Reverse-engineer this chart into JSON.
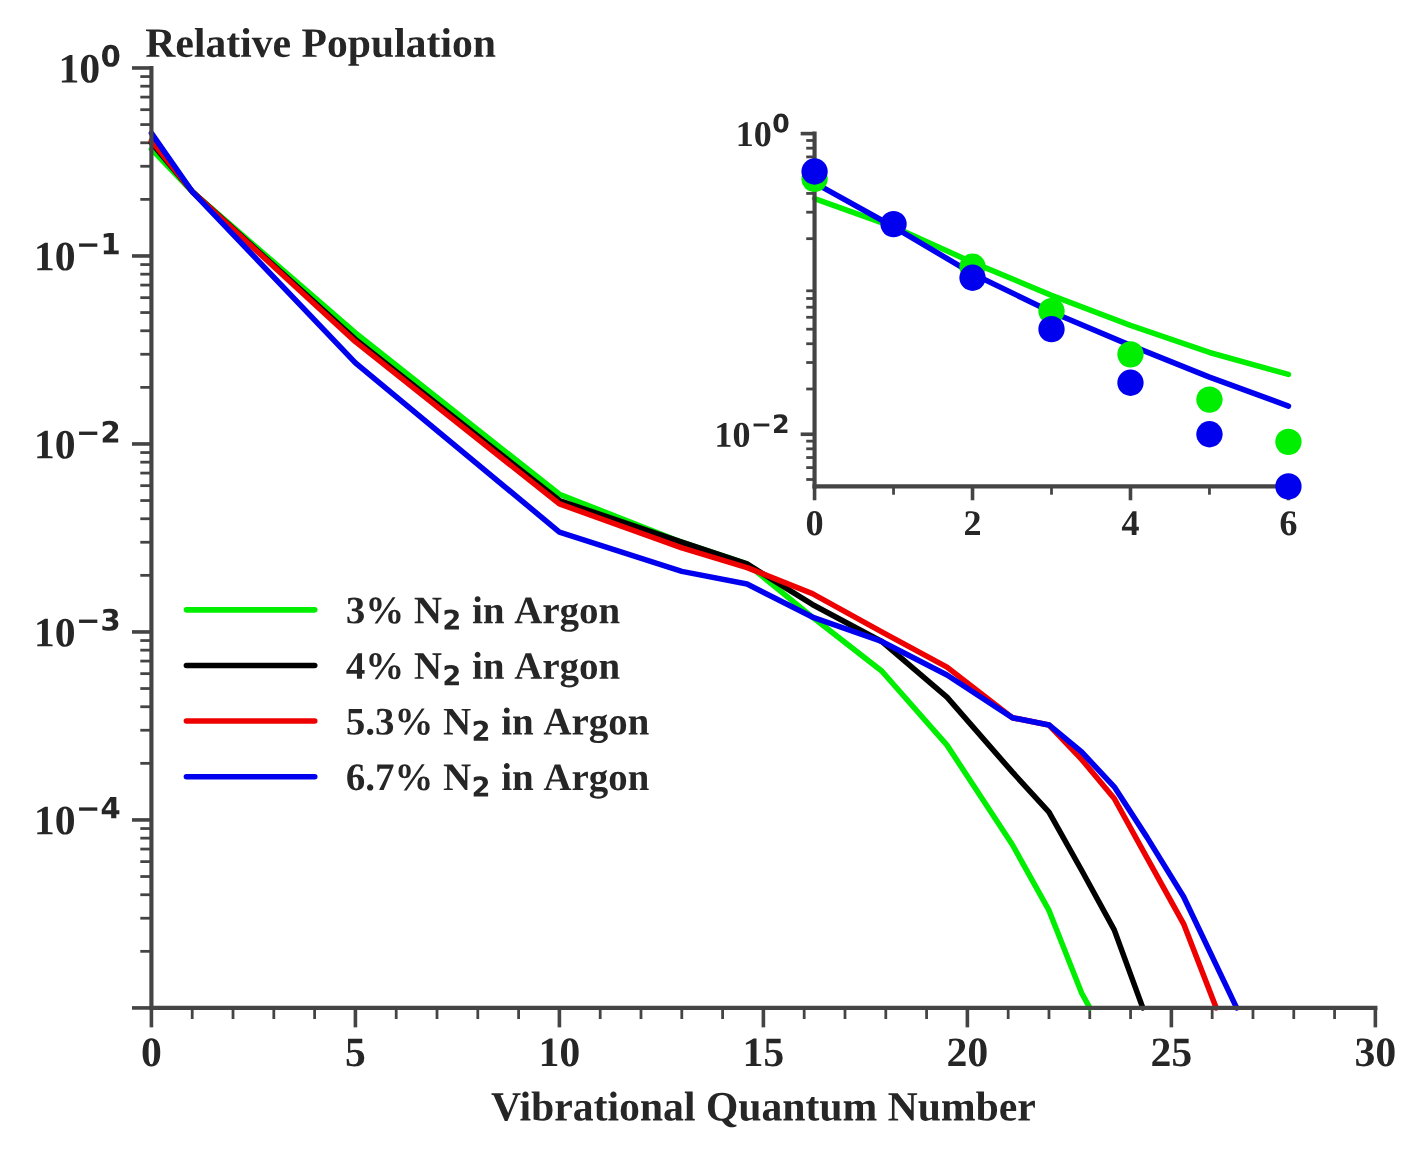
{
  "chart_data": [
    {
      "type": "line",
      "title": "Relative Population",
      "xlabel": "Vibrational Quantum Number",
      "log": "y",
      "legend": "left",
      "grid": false,
      "xlim": [
        0,
        30
      ],
      "xticks": [
        0,
        5,
        10,
        15,
        20,
        25,
        30
      ],
      "ylim": [
        1e-05,
        1
      ],
      "yticks": [
        {
          "value": 1e-05,
          "label": null
        },
        {
          "value": 0.0001,
          "label": "10$^{−4}$"
        },
        {
          "value": 0.001,
          "label": "10$^{−3}$"
        },
        {
          "value": 0.01,
          "label": "10$^{−2}$"
        },
        {
          "value": 0.1,
          "label": "10$^{−1}$"
        },
        {
          "value": 1,
          "label": "10$^{0}$"
        }
      ],
      "series": [
        {
          "name": "3% N$_{2}$ in Argon",
          "color": "#00ee00",
          "x": [
            0,
            1,
            5,
            10,
            13,
            14.6,
            16.2,
            17.9,
            19.5,
            21.1,
            22,
            22.8,
            23
          ],
          "values": [
            0.37,
            0.22,
            0.039,
            0.0054,
            0.003,
            0.0023,
            0.0012,
            0.00062,
            0.00025,
            7.4e-05,
            3.3e-05,
            1.2e-05,
            1e-05
          ]
        },
        {
          "name": "4% N$_{2}$ in Argon",
          "color": "#000000",
          "x": [
            0,
            1,
            5,
            10,
            13,
            14.6,
            16.2,
            17.9,
            19.5,
            21.1,
            22,
            22.8,
            23.6,
            24.3
          ],
          "values": [
            0.4,
            0.22,
            0.036,
            0.005,
            0.003,
            0.0023,
            0.0014,
            0.00089,
            0.00045,
            0.00018,
            0.00011,
            5.4e-05,
            2.6e-05,
            1e-05
          ]
        },
        {
          "name": "5.3% N$_{2}$ in Argon",
          "color": "#ee0000",
          "x": [
            0,
            1,
            5,
            10,
            13,
            14.6,
            16.2,
            17.9,
            19.5,
            21.1,
            22,
            22.8,
            23.6,
            24.4,
            25.3,
            26.1
          ],
          "values": [
            0.41,
            0.22,
            0.035,
            0.0048,
            0.0028,
            0.0022,
            0.0016,
            0.001,
            0.00065,
            0.00035,
            0.00032,
            0.00021,
            0.00013,
            6.3e-05,
            2.8e-05,
            1e-05
          ]
        },
        {
          "name": "6.7% N$_{2}$ in Argon",
          "color": "#0000ee",
          "x": [
            0,
            1,
            5,
            10,
            13,
            14.6,
            16.2,
            17.9,
            19.5,
            21.1,
            22,
            22.8,
            23.6,
            24.4,
            25.3,
            26.6
          ],
          "values": [
            0.45,
            0.22,
            0.027,
            0.0034,
            0.0021,
            0.0018,
            0.0012,
            0.00089,
            0.00059,
            0.00035,
            0.00032,
            0.00023,
            0.00015,
            8.1e-05,
            3.9e-05,
            1e-05
          ]
        }
      ]
    },
    {
      "type": "line",
      "log": "y",
      "grid": false,
      "xlim": [
        0,
        6
      ],
      "xticks": [
        0,
        2,
        4,
        6
      ],
      "ylim": [
        0.0045,
        1
      ],
      "yticks": [
        {
          "value": 0.01,
          "label": "10$^{−2}$"
        },
        {
          "value": 1,
          "label": "10$^{0}$"
        }
      ],
      "series": [
        {
          "color": "#00ee00",
          "x": [
            0,
            1,
            2,
            3,
            4,
            5,
            6
          ],
          "values": [
            0.37,
            0.24,
            0.139,
            0.084,
            0.053,
            0.035,
            0.025
          ]
        },
        {
          "color": "#0000ee",
          "x": [
            0,
            1,
            2,
            3,
            4,
            5,
            6
          ],
          "values": [
            0.47,
            0.24,
            0.117,
            0.065,
            0.039,
            0.024,
            0.0154
          ]
        },
        {
          "type": "scatter",
          "marker": "circle",
          "color": "#00ee00",
          "x": [
            0,
            1,
            2,
            3,
            4,
            5,
            6
          ],
          "values": [
            0.5,
            null,
            0.13,
            0.066,
            0.034,
            0.017,
            0.0089
          ]
        },
        {
          "type": "scatter",
          "marker": "circle",
          "color": "#0000ee",
          "x": [
            0,
            1,
            2,
            3,
            4,
            5,
            6
          ],
          "values": [
            0.56,
            0.25,
            0.11,
            0.05,
            0.022,
            0.01,
            0.0045
          ]
        }
      ]
    }
  ]
}
